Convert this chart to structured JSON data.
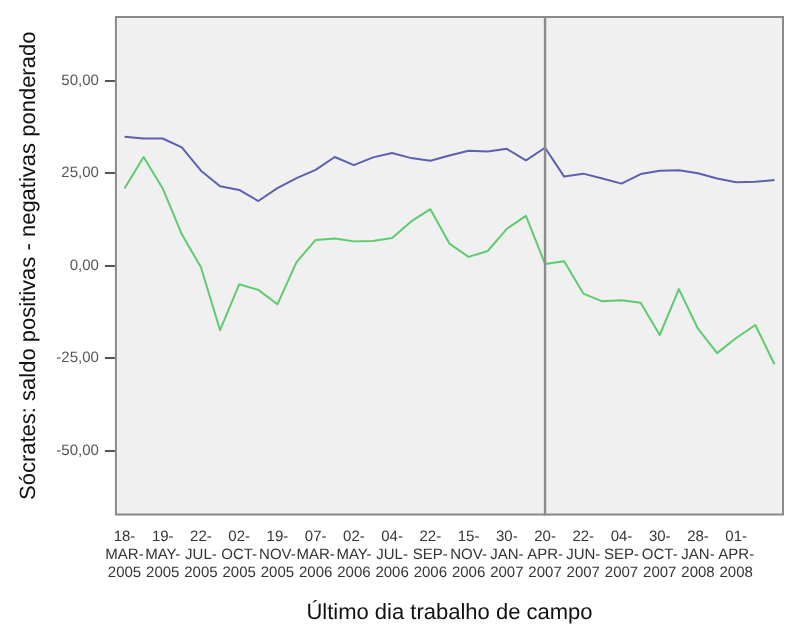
{
  "chart_data": {
    "type": "line",
    "xlabel": "Último dia trabalho de campo",
    "ylabel": "Sócrates: saldo positivas - negativas ponderado",
    "categories": [
      "18-MAR-2005",
      null,
      "19-MAY-2005",
      null,
      "22-JUL-2005",
      null,
      "02-OCT-2005",
      null,
      "19-NOV-2005",
      null,
      "07-MAR-2006",
      null,
      "02-MAY-2006",
      null,
      "04-JUL-2006",
      null,
      "22-SEP-2006",
      null,
      "15-NOV-2006",
      null,
      "30-JAN-2007",
      null,
      "20-APR-2007",
      null,
      "22-JUN-2007",
      null,
      "04-SEP-2007",
      null,
      "30-OCT-2007",
      null,
      "28-JAN-2008",
      null,
      "01-APR-2008",
      null,
      null
    ],
    "series": [
      {
        "color": "#5a62b0",
        "values": [
          34.9,
          34.4,
          34.4,
          32,
          25.7,
          21.5,
          20.5,
          17.5,
          21,
          23.7,
          25.9,
          29.4,
          27.2,
          29.3,
          30.5,
          29.1,
          28.4,
          29.8,
          31.1,
          30.9,
          31.6,
          28.5,
          31.9,
          24.1,
          24.9,
          23.6,
          22.2,
          24.8,
          25.7,
          25.8,
          25,
          23.6,
          22.6,
          22.7,
          23.2
        ]
      },
      {
        "color": "#5ecb6e",
        "values": [
          20.9,
          29.4,
          20.9,
          8.5,
          -0.4,
          -17.4,
          -5,
          -6.5,
          -10.4,
          1,
          7,
          7.4,
          6.6,
          6.7,
          7.5,
          12,
          15.3,
          6,
          2.4,
          4,
          10,
          13.5,
          0.5,
          1.2,
          -7.5,
          -9.6,
          -9.3,
          -10,
          -18.7,
          -6.3,
          -17,
          -23.6,
          -19.5,
          -16,
          -26.6
        ]
      }
    ],
    "ylim": [
      -67.5,
      67.5
    ],
    "yticks": [
      {
        "value": -50,
        "label": "-50,00"
      },
      {
        "value": -25,
        "label": "-25,00"
      },
      {
        "value": 0,
        "label": "0,00"
      },
      {
        "value": 25,
        "label": "25,00"
      },
      {
        "value": 50,
        "label": "50,00"
      }
    ],
    "ref_lines": [
      {
        "axis": "x",
        "value": "20-APR-2007",
        "color": "#8c8c8c"
      }
    ],
    "grid": false,
    "legend": false,
    "marker": "none",
    "line_style": "solid"
  }
}
